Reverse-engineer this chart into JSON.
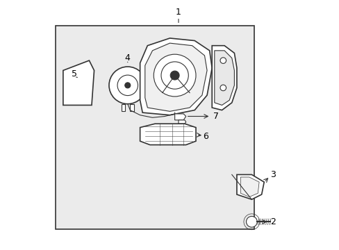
{
  "bg_color": "#ffffff",
  "box_fill": "#ebebeb",
  "line_color": "#333333",
  "white": "#ffffff",
  "light_gray": "#e8e8e8"
}
